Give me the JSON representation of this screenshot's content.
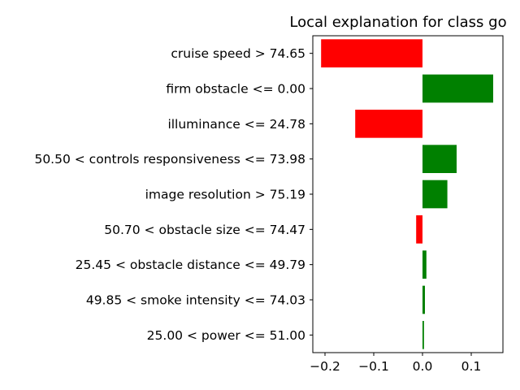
{
  "chart_data": {
    "type": "bar",
    "orientation": "horizontal",
    "title": "Local explanation for class go",
    "xlabel": "",
    "ylabel": "",
    "xlim": [
      -0.225,
      0.165
    ],
    "xticks": [
      -0.2,
      -0.1,
      0.0,
      0.1
    ],
    "xtick_labels": [
      "−0.2",
      "−0.1",
      "0.0",
      "0.1"
    ],
    "grid": false,
    "categories": [
      "cruise speed > 74.65",
      "firm obstacle <= 0.00",
      "illuminance <= 24.78",
      "50.50 < controls responsiveness <= 73.98",
      "image resolution > 75.19",
      "50.70 < obstacle size <= 74.47",
      "25.45 < obstacle distance <= 49.79",
      "49.85 < smoke intensity <= 74.03",
      "25.00 < power <= 51.00"
    ],
    "values": [
      -0.208,
      0.145,
      -0.138,
      0.07,
      0.051,
      -0.013,
      0.008,
      0.005,
      0.003
    ],
    "colors": {
      "positive": "#008000",
      "negative": "#ff0000"
    }
  }
}
